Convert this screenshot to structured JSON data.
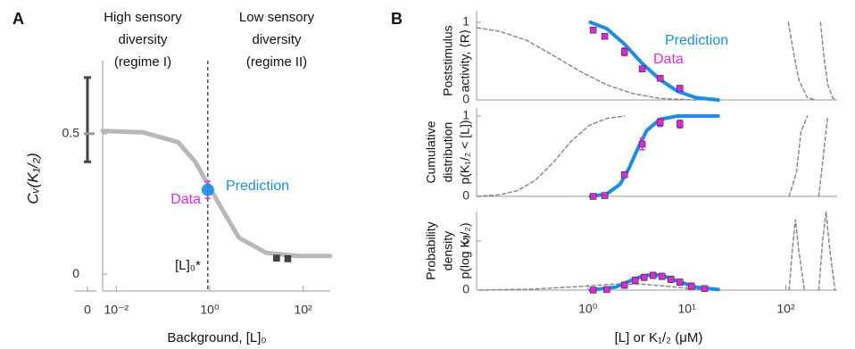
{
  "chart_data": [
    {
      "type": "line",
      "panel": "A",
      "xscale": "log",
      "xlim": [
        0.0051,
        380
      ],
      "xticks": [
        {
          "value": 0.01,
          "label": "10⁻²"
        },
        {
          "value": 1,
          "label": "10⁰"
        },
        {
          "value": 100,
          "label": "10²"
        }
      ],
      "ylim": [
        -0.06,
        0.76
      ],
      "yticks": [
        0,
        0.5
      ],
      "xlabel": "Background, [L]₀",
      "ylabel": "Cᵥ(K₁/₂)",
      "regimes": [
        [
          "High sensory",
          "diversity",
          "(regime I)"
        ],
        [
          "Low sensory",
          "diversity",
          "(regime II)"
        ]
      ],
      "threshold": {
        "x": 0.91,
        "label": "[L]₀*"
      },
      "zero": {
        "label": "0",
        "mean": 0.5,
        "low": 0.4,
        "high": 0.7
      },
      "series": [
        {
          "style": "line",
          "color": "#b8b8b8",
          "width": 5,
          "x": [
            0.0051,
            0.037,
            0.21,
            0.49,
            0.91,
            1.86,
            4.2,
            16,
            75,
            380
          ],
          "values": [
            0.51,
            0.505,
            0.47,
            0.4,
            0.32,
            0.23,
            0.13,
            0.076,
            0.065,
            0.065
          ]
        },
        {
          "style": "markers",
          "marker": "square",
          "color": "#444444",
          "x": [
            27,
            47
          ],
          "values": [
            0.057,
            0.055
          ],
          "errors": [
            0.005,
            0.01
          ]
        },
        {
          "style": "markers",
          "marker": "none",
          "color": "#e02ce0",
          "x": [
            0.91
          ],
          "values": [
            0.3
          ],
          "errors": [
            0.03
          ]
        },
        {
          "style": "markers",
          "marker": "circle",
          "color": "#1e8ce6",
          "x": [
            0.91
          ],
          "values": [
            0.3
          ]
        }
      ],
      "annotations": [
        {
          "text": "Data",
          "color": "#e02ce0"
        },
        {
          "text": "Prediction",
          "color": "#1e8ce6"
        }
      ]
    },
    {
      "type": "line",
      "panel": "B",
      "xscale": "log",
      "xlim": [
        0.075,
        330
      ],
      "ylim": [
        0,
        1.15
      ],
      "yticks": [
        0,
        1
      ],
      "ylabel_lines": [
        "Poststimulus",
        "activity, ⟨R⟩"
      ],
      "series": [
        {
          "style": "dashed",
          "color": "#8a8a8a",
          "width": 1.5,
          "x": [
            0.076,
            0.128,
            0.239,
            0.445,
            0.83,
            1.55,
            2.88,
            5.37,
            12.3
          ],
          "values": [
            0.93,
            0.885,
            0.77,
            0.575,
            0.37,
            0.195,
            0.08,
            0.02,
            0
          ]
        },
        {
          "style": "dashed",
          "color": "#8a8a8a",
          "width": 1.5,
          "x": [
            106,
            120,
            136,
            165,
            203
          ],
          "values": [
            1,
            0.6,
            0.25,
            0.03,
            0
          ]
        },
        {
          "style": "dashed",
          "color": "#8a8a8a",
          "width": 1.5,
          "x": [
            224,
            243,
            265,
            300,
            326
          ],
          "values": [
            1,
            0.55,
            0.2,
            0.02,
            0.01
          ]
        },
        {
          "style": "line",
          "color": "#1e8ce6",
          "width": 4,
          "x": [
            1.06,
            1.55,
            2.34,
            3.54,
            5.37,
            8.1,
            12.3,
            20.7
          ],
          "values": [
            1,
            0.92,
            0.72,
            0.47,
            0.26,
            0.11,
            0.03,
            0
          ]
        },
        {
          "style": "markers",
          "marker": "square",
          "color": "#d030d0",
          "x": [
            1.13,
            1.48,
            2.34,
            3.54,
            5.37,
            8.5
          ],
          "values": [
            0.9,
            0.82,
            0.62,
            0.4,
            0.28,
            0.15
          ],
          "errors": [
            0.03,
            0.03,
            0.05,
            0.03,
            0.03,
            0.03
          ]
        }
      ],
      "annotations": [
        {
          "text": "Prediction",
          "color": "#1e8ce6"
        },
        {
          "text": "Data",
          "color": "#e02ce0"
        }
      ]
    },
    {
      "type": "line",
      "xscale": "log",
      "xlim": [
        0.075,
        330
      ],
      "ylim": [
        0,
        1.1
      ],
      "yticks": [
        0,
        1
      ],
      "ylabel_lines": [
        "Cumulative",
        "distribution",
        "p(K₁/₂ < [L])"
      ],
      "series": [
        {
          "style": "dashed",
          "color": "#8a8a8a",
          "width": 1.5,
          "x": [
            0.076,
            0.128,
            0.194,
            0.294,
            0.445,
            0.67,
            1.02,
            1.55,
            2.34
          ],
          "values": [
            0,
            0.02,
            0.07,
            0.2,
            0.42,
            0.68,
            0.88,
            0.97,
            1
          ]
        },
        {
          "style": "dashed",
          "color": "#8a8a8a",
          "width": 1.5,
          "x": [
            108,
            128,
            142,
            165
          ],
          "values": [
            0,
            0.3,
            0.8,
            1
          ]
        },
        {
          "style": "dashed",
          "color": "#8a8a8a",
          "width": 1.5,
          "x": [
            215,
            239,
            265
          ],
          "values": [
            0,
            0.5,
            1
          ]
        },
        {
          "style": "line",
          "color": "#1e8ce6",
          "width": 4,
          "x": [
            1.06,
            1.55,
            2.11,
            2.6,
            3.2,
            3.93,
            5.37,
            8.1,
            20.7
          ],
          "values": [
            0,
            0.03,
            0.15,
            0.35,
            0.6,
            0.82,
            0.96,
            1,
            1
          ]
        },
        {
          "style": "markers",
          "marker": "square",
          "color": "#d030d0",
          "x": [
            1.13,
            1.48,
            2.34,
            3.54,
            5.37,
            8.5
          ],
          "values": [
            0,
            0.01,
            0.27,
            0.65,
            0.92,
            0.9
          ],
          "errors": [
            0.01,
            0.01,
            0.03,
            0.07,
            0.05,
            0.05
          ]
        }
      ]
    },
    {
      "type": "line",
      "xscale": "log",
      "xlim": [
        0.075,
        330
      ],
      "ylim": [
        0,
        8
      ],
      "xticks": [
        {
          "value": 1,
          "label": "10⁰"
        },
        {
          "value": 10,
          "label": "10¹"
        },
        {
          "value": 100,
          "label": "10²"
        }
      ],
      "yticks": [
        0,
        5
      ],
      "ylabel_lines": [
        "Probability",
        "density",
        "p(log K₁/₂)"
      ],
      "xlabel": "[L] or K₁/₂ (μM)",
      "series": [
        {
          "style": "dashed",
          "color": "#8a8a8a",
          "width": 1.5,
          "x": [
            0.08,
            0.278,
            0.78,
            1.78,
            3.54,
            6.9,
            12.3,
            18.8
          ],
          "values": [
            0,
            0.1,
            0.35,
            0.6,
            0.6,
            0.35,
            0.1,
            0
          ]
        },
        {
          "style": "dashed",
          "color": "#8a8a8a",
          "width": 1.5,
          "x": [
            108,
            116,
            125,
            135,
            154
          ],
          "values": [
            0,
            4,
            7.2,
            4,
            0
          ]
        },
        {
          "style": "dashed",
          "color": "#8a8a8a",
          "width": 1.5,
          "x": [
            215,
            235,
            255,
            279,
            313
          ],
          "values": [
            0,
            5,
            8,
            4,
            0
          ]
        },
        {
          "style": "line",
          "color": "#1e8ce6",
          "width": 4,
          "x": [
            1.06,
            1.9,
            2.6,
            3.54,
            4.55,
            5.95,
            8.1,
            12.3,
            20.7
          ],
          "values": [
            0,
            0.3,
            0.9,
            1.4,
            1.6,
            1.4,
            0.9,
            0.3,
            0.05
          ]
        },
        {
          "style": "markers",
          "marker": "square",
          "color": "#d030d0",
          "x": [
            1.13,
            1.55,
            2.34,
            3.0,
            3.7,
            4.55,
            5.6,
            6.9,
            8.5,
            11.1,
            15.1
          ],
          "values": [
            0,
            0.05,
            0.5,
            1.0,
            1.3,
            1.5,
            1.4,
            1.1,
            0.8,
            0.4,
            0.15
          ],
          "errors": [
            0.1,
            0.1,
            0.3,
            0.3,
            0.3,
            0.3,
            0.3,
            0.3,
            0.3,
            0.3,
            0.2
          ]
        }
      ]
    }
  ]
}
